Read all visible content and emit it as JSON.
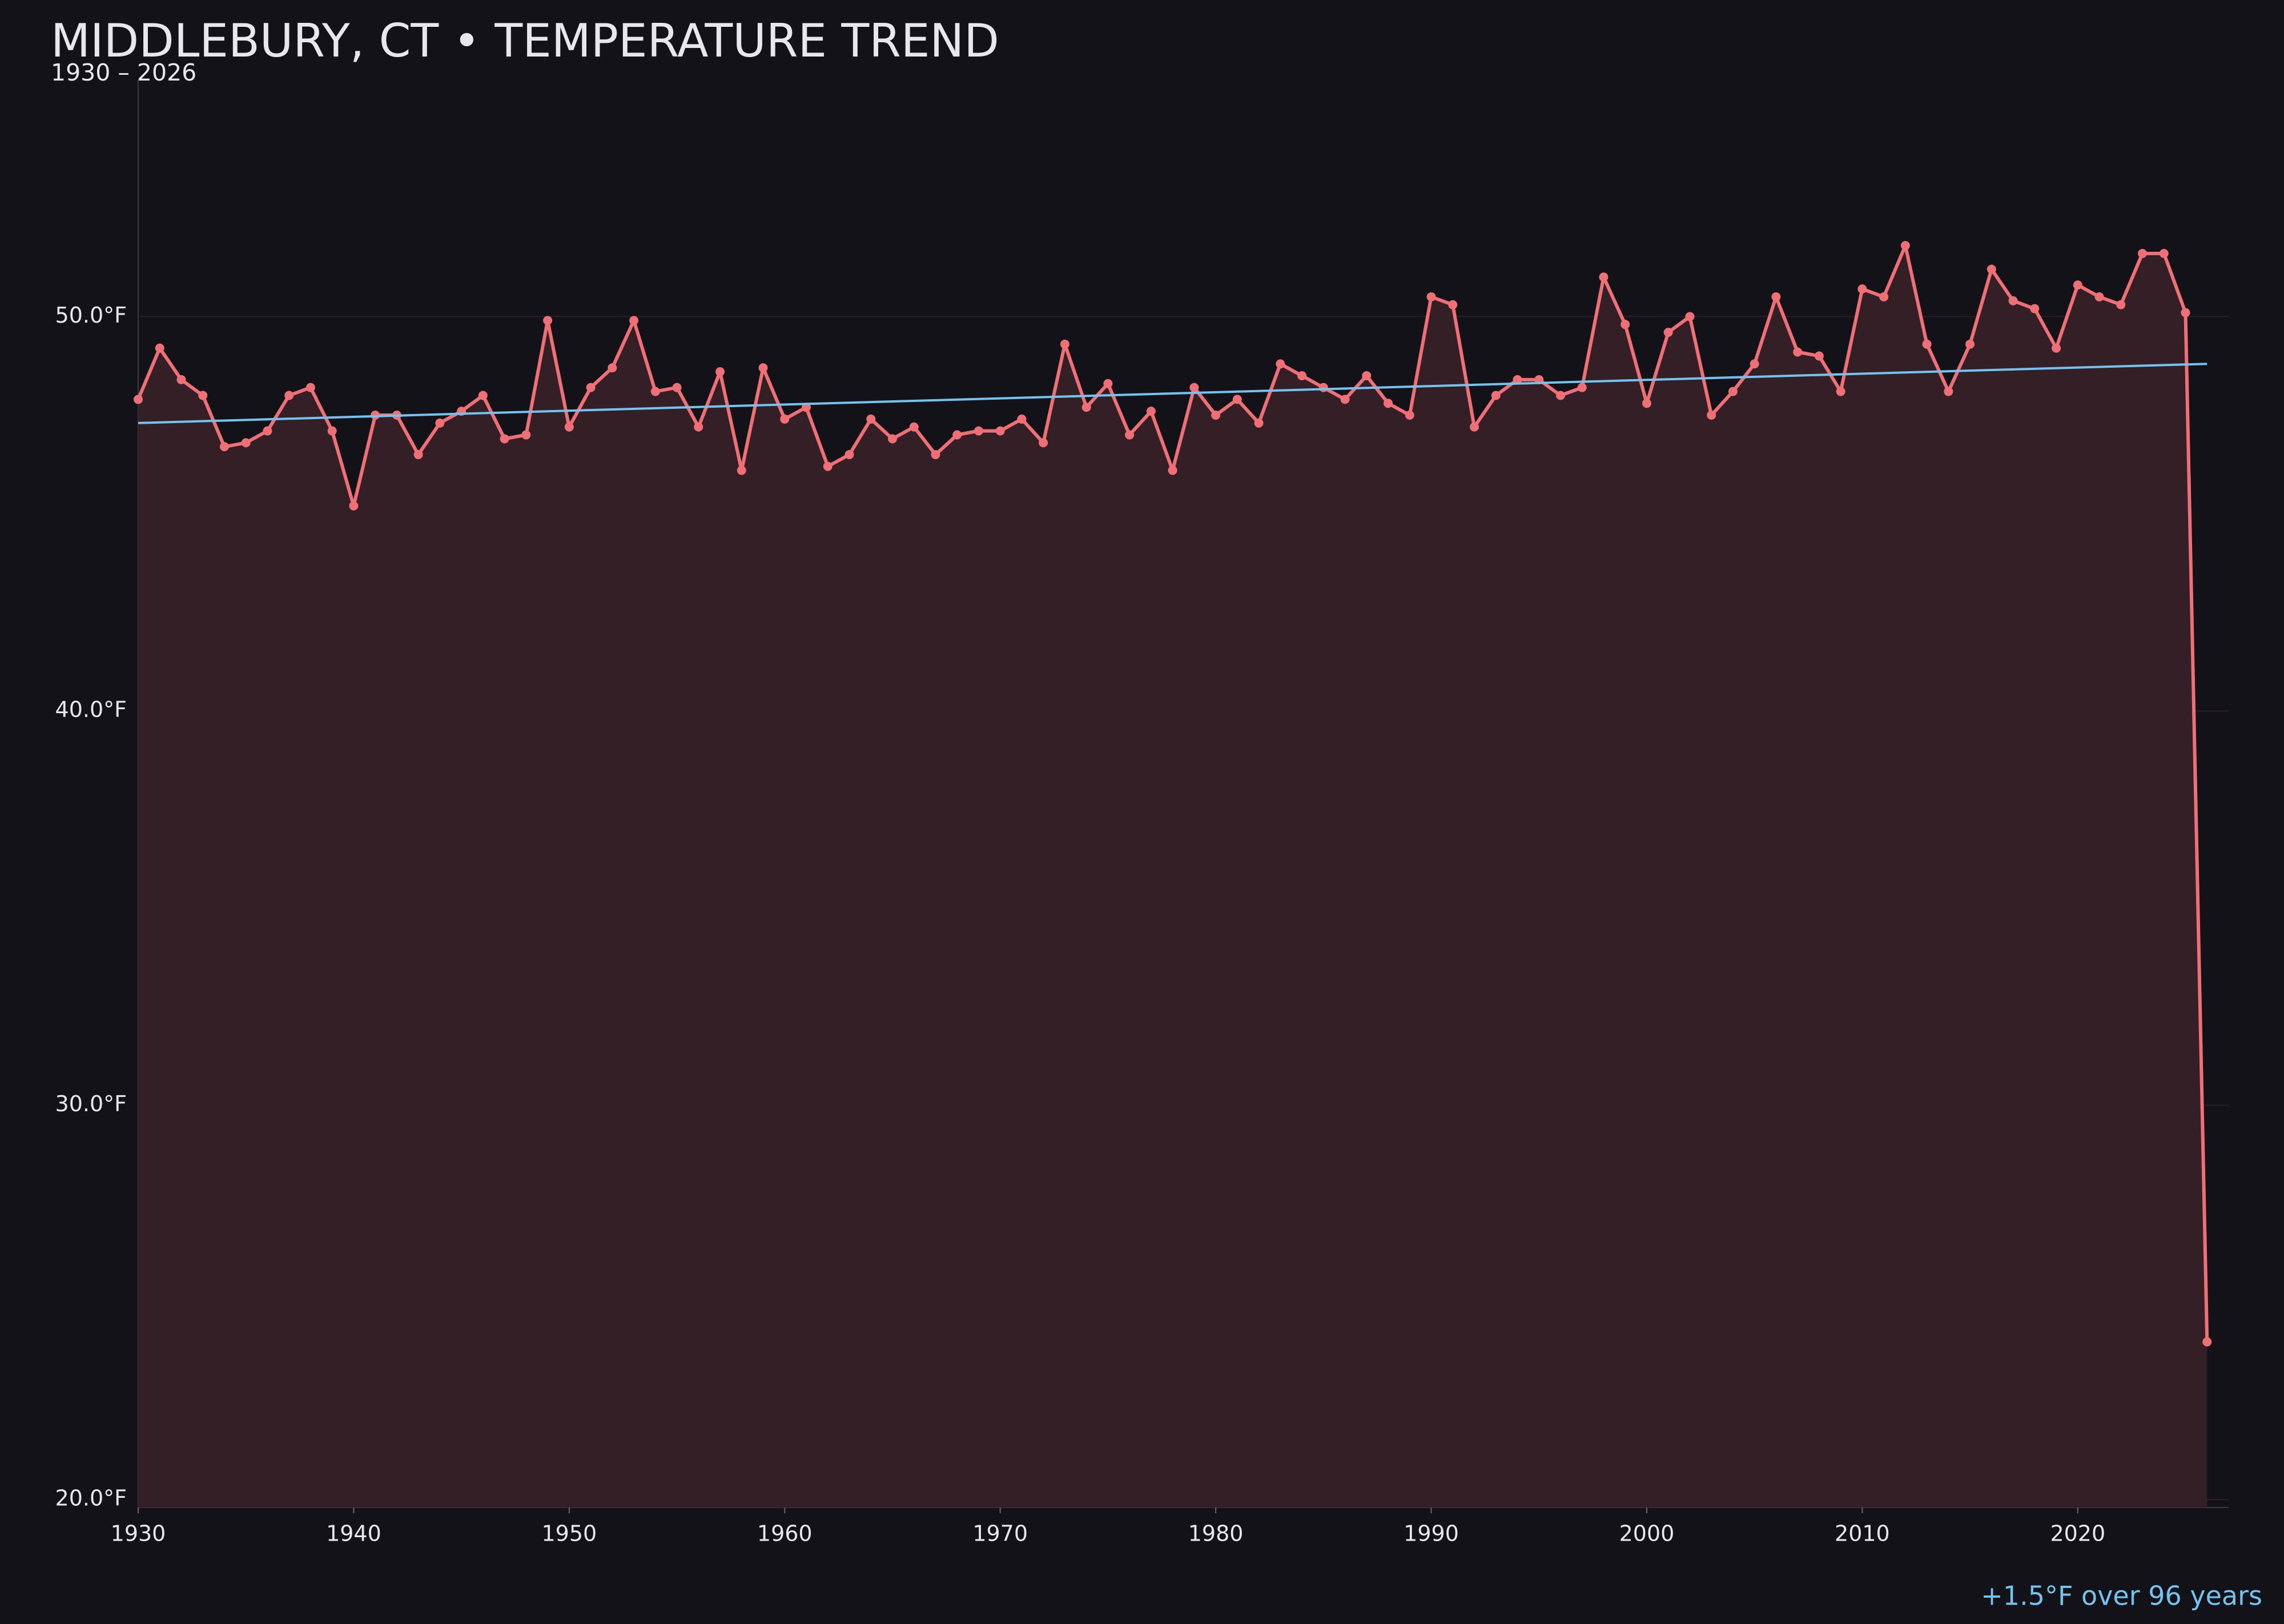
{
  "chart_data": {
    "type": "line",
    "title": "MIDDLEBURY, CT • TEMPERATURE TREND",
    "subtitle": "1930 – 2026",
    "annotation": "+1.5°F over 96 years",
    "x": [
      1930,
      1931,
      1932,
      1933,
      1934,
      1935,
      1936,
      1937,
      1938,
      1939,
      1940,
      1941,
      1942,
      1943,
      1944,
      1945,
      1946,
      1947,
      1948,
      1949,
      1950,
      1951,
      1952,
      1953,
      1954,
      1955,
      1956,
      1957,
      1958,
      1959,
      1960,
      1961,
      1962,
      1963,
      1964,
      1965,
      1966,
      1967,
      1968,
      1969,
      1970,
      1971,
      1972,
      1973,
      1974,
      1975,
      1976,
      1977,
      1978,
      1979,
      1980,
      1981,
      1982,
      1983,
      1984,
      1985,
      1986,
      1987,
      1988,
      1989,
      1990,
      1991,
      1992,
      1993,
      1994,
      1995,
      1996,
      1997,
      1998,
      1999,
      2000,
      2001,
      2002,
      2003,
      2004,
      2005,
      2006,
      2007,
      2008,
      2009,
      2010,
      2011,
      2012,
      2013,
      2014,
      2015,
      2016,
      2017,
      2018,
      2019,
      2020,
      2021,
      2022,
      2023,
      2024,
      2025,
      2026
    ],
    "series": [
      {
        "color": "#ef6f76",
        "fill": "#341f26",
        "values": [
          47.9,
          49.2,
          48.4,
          48.0,
          46.7,
          46.8,
          47.1,
          48.0,
          48.2,
          47.1,
          45.2,
          47.5,
          47.5,
          46.5,
          47.3,
          47.6,
          48.0,
          46.9,
          47.0,
          49.9,
          47.2,
          48.2,
          48.7,
          49.9,
          48.1,
          48.2,
          47.2,
          48.6,
          46.1,
          48.7,
          47.4,
          47.7,
          46.2,
          46.5,
          47.4,
          46.9,
          47.2,
          46.5,
          47.0,
          47.1,
          47.1,
          47.4,
          46.8,
          49.3,
          47.7,
          48.3,
          47.0,
          47.6,
          46.1,
          48.2,
          47.5,
          47.9,
          47.3,
          48.8,
          48.5,
          48.2,
          47.9,
          48.5,
          47.8,
          47.5,
          50.5,
          50.3,
          47.2,
          48.0,
          48.4,
          48.4,
          48.0,
          48.2,
          51.0,
          49.8,
          47.8,
          49.6,
          50.0,
          47.5,
          48.1,
          48.8,
          50.5,
          49.1,
          49.0,
          48.1,
          50.7,
          50.5,
          51.8,
          49.3,
          48.1,
          49.3,
          51.2,
          50.4,
          50.2,
          49.2,
          50.8,
          50.5,
          50.3,
          51.6,
          51.6,
          50.1,
          24.0
        ]
      },
      {
        "color": "#74c3ee",
        "x": [
          1930,
          2026
        ],
        "values": [
          47.3,
          48.8
        ]
      }
    ],
    "xlim": [
      1930,
      2027
    ],
    "xticks": [
      1930,
      1940,
      1950,
      1960,
      1970,
      1980,
      1990,
      2000,
      2010,
      2020
    ],
    "ylim": [
      19.8,
      56
    ],
    "yticks": [
      {
        "value": 20,
        "label": "20.0°F"
      },
      {
        "value": 30,
        "label": "30.0°F"
      },
      {
        "value": 40,
        "label": "40.0°F"
      },
      {
        "value": 50,
        "label": "50.0°F"
      }
    ],
    "grid": true
  }
}
